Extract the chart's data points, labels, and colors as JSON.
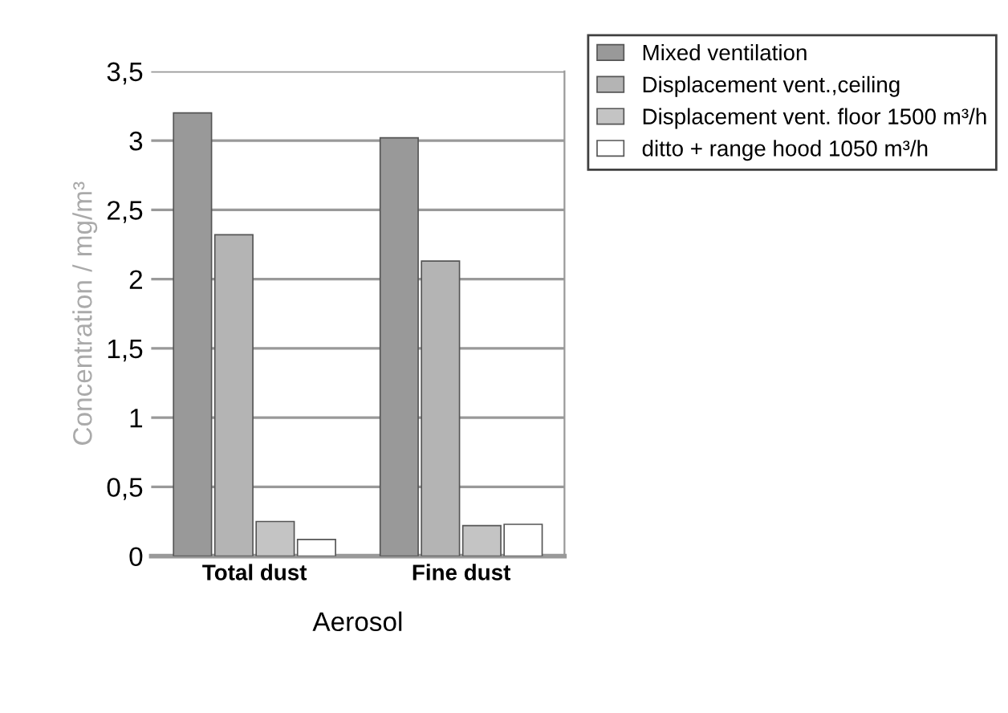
{
  "chart_data": {
    "type": "bar",
    "xlabel": "Aerosol",
    "ylabel": "Concentration / mg/m³",
    "categories": [
      "Total dust",
      "Fine dust"
    ],
    "series": [
      {
        "name": "Mixed ventilation",
        "color": "#999999",
        "values": [
          3.2,
          3.02
        ]
      },
      {
        "name": "Displacement vent.,ceiling",
        "color": "#b4b4b4",
        "values": [
          2.32,
          2.13
        ]
      },
      {
        "name": "Displacement vent. floor 1500 m³/h",
        "color": "#c4c4c4",
        "values": [
          0.25,
          0.22
        ]
      },
      {
        "name": "ditto + range hood 1050 m³/h",
        "color": "#ffffff",
        "values": [
          0.12,
          0.23
        ]
      }
    ],
    "ylim": [
      0,
      3.5
    ],
    "yticks": [
      {
        "value": 0,
        "label": "0"
      },
      {
        "value": 0.5,
        "label": "0,5"
      },
      {
        "value": 1,
        "label": "1"
      },
      {
        "value": 1.5,
        "label": "1,5"
      },
      {
        "value": 2,
        "label": "2"
      },
      {
        "value": 2.5,
        "label": "2,5"
      },
      {
        "value": 3,
        "label": "3"
      },
      {
        "value": 3.5,
        "label": "3,5"
      }
    ],
    "grid": "y",
    "legend": "top right"
  }
}
